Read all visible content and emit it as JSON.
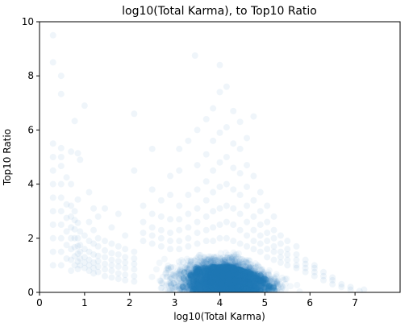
{
  "chart_data": {
    "type": "scatter",
    "title": "log10(Total Karma), to Top10 Ratio",
    "xlabel": "log10(Total Karma)",
    "ylabel": "Top10 Ratio",
    "xlim": [
      0,
      8
    ],
    "ylim": [
      0,
      10
    ],
    "x_ticks": [
      0,
      1,
      2,
      3,
      4,
      5,
      6,
      7
    ],
    "y_ticks": [
      0,
      2,
      4,
      6,
      8,
      10
    ],
    "grid": false,
    "legend": "none",
    "marker_color": "#1f77b4",
    "marker_alpha": 0.05,
    "dense_region": {
      "description_free": true,
      "x_min": 2.2,
      "x_max": 6.5,
      "y_min": 0,
      "y_peak": 1.3,
      "peak_x": 4.3
    },
    "series": [
      {
        "values": [
          [
            0.3,
            1.0
          ],
          [
            0.3,
            1.5
          ],
          [
            0.3,
            2.0
          ],
          [
            0.3,
            2.5
          ],
          [
            0.3,
            3.0
          ],
          [
            0.3,
            3.5
          ],
          [
            0.3,
            4.0
          ],
          [
            0.3,
            4.5
          ],
          [
            0.3,
            5.0
          ],
          [
            0.3,
            5.5
          ],
          [
            0.3,
            8.5
          ],
          [
            0.3,
            9.5
          ],
          [
            0.48,
            1.0
          ],
          [
            0.48,
            1.5
          ],
          [
            0.48,
            2.0
          ],
          [
            0.48,
            2.5
          ],
          [
            0.48,
            3.0
          ],
          [
            0.48,
            3.5
          ],
          [
            0.48,
            4.0
          ],
          [
            0.48,
            4.67
          ],
          [
            0.48,
            5.0
          ],
          [
            0.48,
            5.33
          ],
          [
            0.48,
            7.33
          ],
          [
            0.48,
            8.0
          ],
          [
            0.6,
            1.25
          ],
          [
            0.6,
            1.75
          ],
          [
            0.6,
            2.25
          ],
          [
            0.6,
            2.75
          ],
          [
            0.6,
            3.25
          ],
          [
            0.6,
            4.25
          ],
          [
            0.7,
            0.8
          ],
          [
            0.7,
            1.2
          ],
          [
            0.7,
            1.6
          ],
          [
            0.7,
            2.0
          ],
          [
            0.7,
            2.4
          ],
          [
            0.7,
            2.8
          ],
          [
            0.7,
            3.2
          ],
          [
            0.7,
            4.0
          ],
          [
            0.7,
            5.2
          ],
          [
            0.78,
            1.0
          ],
          [
            0.78,
            1.33
          ],
          [
            0.78,
            1.67
          ],
          [
            0.78,
            2.0
          ],
          [
            0.78,
            2.33
          ],
          [
            0.78,
            2.67
          ],
          [
            0.78,
            3.0
          ],
          [
            0.78,
            6.33
          ],
          [
            0.85,
            0.86
          ],
          [
            0.85,
            1.14
          ],
          [
            0.85,
            1.43
          ],
          [
            0.85,
            1.71
          ],
          [
            0.85,
            2.0
          ],
          [
            0.85,
            2.57
          ],
          [
            0.85,
            3.43
          ],
          [
            0.85,
            5.14
          ],
          [
            0.9,
            1.0
          ],
          [
            0.9,
            1.25
          ],
          [
            0.9,
            1.5
          ],
          [
            0.9,
            1.75
          ],
          [
            0.9,
            2.25
          ],
          [
            0.9,
            4.9
          ],
          [
            1.0,
            0.9
          ],
          [
            1.0,
            1.1
          ],
          [
            1.0,
            1.3
          ],
          [
            1.0,
            1.6
          ],
          [
            1.0,
            2.1
          ],
          [
            1.0,
            6.9
          ],
          [
            1.1,
            0.8
          ],
          [
            1.1,
            1.0
          ],
          [
            1.1,
            1.2
          ],
          [
            1.1,
            1.5
          ],
          [
            1.1,
            1.9
          ],
          [
            1.1,
            2.6
          ],
          [
            1.1,
            3.7
          ],
          [
            1.2,
            0.7
          ],
          [
            1.2,
            0.9
          ],
          [
            1.2,
            1.1
          ],
          [
            1.2,
            1.4
          ],
          [
            1.2,
            1.8
          ],
          [
            1.2,
            2.3
          ],
          [
            1.2,
            3.1
          ],
          [
            1.3,
            0.75
          ],
          [
            1.3,
            0.95
          ],
          [
            1.3,
            1.15
          ],
          [
            1.3,
            1.35
          ],
          [
            1.3,
            1.7
          ],
          [
            1.3,
            2.0
          ],
          [
            1.3,
            2.8
          ],
          [
            1.45,
            0.6
          ],
          [
            1.45,
            0.85
          ],
          [
            1.45,
            1.05
          ],
          [
            1.45,
            1.3
          ],
          [
            1.45,
            1.55
          ],
          [
            1.45,
            1.9
          ],
          [
            1.45,
            3.1
          ],
          [
            1.6,
            0.55
          ],
          [
            1.6,
            0.8
          ],
          [
            1.6,
            1.0
          ],
          [
            1.6,
            1.2
          ],
          [
            1.6,
            1.45
          ],
          [
            1.6,
            1.8
          ],
          [
            1.6,
            2.4
          ],
          [
            1.75,
            0.5
          ],
          [
            1.75,
            0.7
          ],
          [
            1.75,
            0.95
          ],
          [
            1.75,
            1.15
          ],
          [
            1.75,
            1.4
          ],
          [
            1.75,
            1.7
          ],
          [
            1.75,
            2.9
          ],
          [
            1.9,
            0.45
          ],
          [
            1.9,
            0.65
          ],
          [
            1.9,
            0.9
          ],
          [
            1.9,
            1.1
          ],
          [
            1.9,
            1.3
          ],
          [
            1.9,
            1.6
          ],
          [
            1.9,
            2.1
          ],
          [
            2.1,
            0.4
          ],
          [
            2.1,
            0.6
          ],
          [
            2.1,
            0.85
          ],
          [
            2.1,
            1.05
          ],
          [
            2.1,
            1.25
          ],
          [
            2.1,
            1.5
          ],
          [
            2.1,
            4.5
          ],
          [
            2.1,
            6.6
          ],
          [
            2.3,
            1.9
          ],
          [
            2.3,
            2.2
          ],
          [
            2.3,
            2.6
          ],
          [
            2.3,
            3.2
          ],
          [
            2.5,
            1.8
          ],
          [
            2.5,
            2.1
          ],
          [
            2.5,
            2.4
          ],
          [
            2.5,
            2.9
          ],
          [
            2.5,
            3.8
          ],
          [
            2.5,
            5.3
          ],
          [
            2.7,
            1.7
          ],
          [
            2.7,
            2.0
          ],
          [
            2.7,
            2.3
          ],
          [
            2.7,
            2.8
          ],
          [
            2.7,
            3.4
          ],
          [
            2.9,
            1.6
          ],
          [
            2.9,
            1.9
          ],
          [
            2.9,
            2.2
          ],
          [
            2.9,
            2.7
          ],
          [
            2.9,
            3.6
          ],
          [
            2.9,
            4.3
          ],
          [
            3.1,
            1.6
          ],
          [
            3.1,
            1.9
          ],
          [
            3.1,
            2.3
          ],
          [
            3.1,
            2.7
          ],
          [
            3.1,
            3.2
          ],
          [
            3.1,
            4.5
          ],
          [
            3.1,
            5.3
          ],
          [
            3.3,
            1.7
          ],
          [
            3.3,
            2.0
          ],
          [
            3.3,
            2.4
          ],
          [
            3.3,
            2.9
          ],
          [
            3.3,
            3.6
          ],
          [
            3.3,
            5.6
          ],
          [
            3.45,
            8.75
          ],
          [
            3.5,
            1.8
          ],
          [
            3.5,
            2.2
          ],
          [
            3.5,
            2.6
          ],
          [
            3.5,
            3.1
          ],
          [
            3.5,
            3.8
          ],
          [
            3.5,
            4.7
          ],
          [
            3.5,
            6.0
          ],
          [
            3.7,
            1.9
          ],
          [
            3.7,
            2.3
          ],
          [
            3.7,
            2.8
          ],
          [
            3.7,
            3.4
          ],
          [
            3.7,
            4.1
          ],
          [
            3.7,
            5.1
          ],
          [
            3.7,
            6.4
          ],
          [
            3.85,
            1.9
          ],
          [
            3.85,
            2.4
          ],
          [
            3.85,
            3.0
          ],
          [
            3.85,
            3.7
          ],
          [
            3.85,
            4.5
          ],
          [
            3.85,
            5.6
          ],
          [
            3.85,
            6.8
          ],
          [
            4.0,
            2.0
          ],
          [
            4.0,
            2.5
          ],
          [
            4.0,
            3.1
          ],
          [
            4.0,
            3.9
          ],
          [
            4.0,
            4.8
          ],
          [
            4.0,
            5.9
          ],
          [
            4.0,
            7.4
          ],
          [
            4.0,
            8.4
          ],
          [
            4.15,
            2.0
          ],
          [
            4.15,
            2.6
          ],
          [
            4.15,
            3.2
          ],
          [
            4.15,
            4.0
          ],
          [
            4.15,
            5.0
          ],
          [
            4.15,
            6.1
          ],
          [
            4.15,
            7.6
          ],
          [
            4.3,
            1.9
          ],
          [
            4.3,
            2.5
          ],
          [
            4.3,
            3.1
          ],
          [
            4.3,
            3.8
          ],
          [
            4.3,
            4.6
          ],
          [
            4.3,
            5.5
          ],
          [
            4.3,
            6.7
          ],
          [
            4.45,
            1.8
          ],
          [
            4.45,
            2.3
          ],
          [
            4.45,
            2.9
          ],
          [
            4.45,
            3.6
          ],
          [
            4.45,
            4.4
          ],
          [
            4.45,
            5.3
          ],
          [
            4.45,
            6.3
          ],
          [
            4.6,
            1.7
          ],
          [
            4.6,
            2.1
          ],
          [
            4.6,
            2.6
          ],
          [
            4.6,
            3.2
          ],
          [
            4.6,
            3.9
          ],
          [
            4.6,
            4.7
          ],
          [
            4.6,
            5.7
          ],
          [
            4.75,
            1.6
          ],
          [
            4.75,
            1.9
          ],
          [
            4.75,
            2.3
          ],
          [
            4.75,
            2.8
          ],
          [
            4.75,
            3.4
          ],
          [
            4.75,
            4.3
          ],
          [
            4.75,
            6.5
          ],
          [
            4.9,
            1.5
          ],
          [
            4.9,
            1.8
          ],
          [
            4.9,
            2.1
          ],
          [
            4.9,
            2.5
          ],
          [
            4.9,
            3.0
          ],
          [
            4.9,
            3.7
          ],
          [
            5.05,
            1.3
          ],
          [
            5.05,
            1.6
          ],
          [
            5.05,
            1.9
          ],
          [
            5.05,
            2.2
          ],
          [
            5.05,
            2.6
          ],
          [
            5.05,
            3.2
          ],
          [
            5.2,
            1.2
          ],
          [
            5.2,
            1.5
          ],
          [
            5.2,
            1.7
          ],
          [
            5.2,
            2.0
          ],
          [
            5.2,
            2.3
          ],
          [
            5.2,
            2.8
          ],
          [
            5.35,
            1.1
          ],
          [
            5.35,
            1.3
          ],
          [
            5.35,
            1.5
          ],
          [
            5.35,
            1.8
          ],
          [
            5.35,
            2.1
          ],
          [
            5.5,
            1.0
          ],
          [
            5.5,
            1.2
          ],
          [
            5.5,
            1.4
          ],
          [
            5.5,
            1.6
          ],
          [
            5.5,
            1.9
          ],
          [
            5.7,
            0.9
          ],
          [
            5.7,
            1.0
          ],
          [
            5.7,
            1.2
          ],
          [
            5.7,
            1.4
          ],
          [
            5.7,
            1.7
          ],
          [
            5.9,
            0.75
          ],
          [
            5.9,
            0.9
          ],
          [
            5.9,
            1.05
          ],
          [
            5.9,
            1.2
          ],
          [
            6.1,
            0.6
          ],
          [
            6.1,
            0.75
          ],
          [
            6.1,
            0.9
          ],
          [
            6.1,
            1.0
          ],
          [
            6.3,
            0.45
          ],
          [
            6.3,
            0.6
          ],
          [
            6.3,
            0.75
          ],
          [
            6.5,
            0.3
          ],
          [
            6.5,
            0.45
          ],
          [
            6.5,
            0.55
          ],
          [
            6.7,
            0.2
          ],
          [
            6.7,
            0.3
          ],
          [
            6.9,
            0.1
          ],
          [
            6.9,
            0.2
          ],
          [
            7.1,
            0.05
          ],
          [
            7.2,
            0.1
          ]
        ]
      }
    ]
  }
}
